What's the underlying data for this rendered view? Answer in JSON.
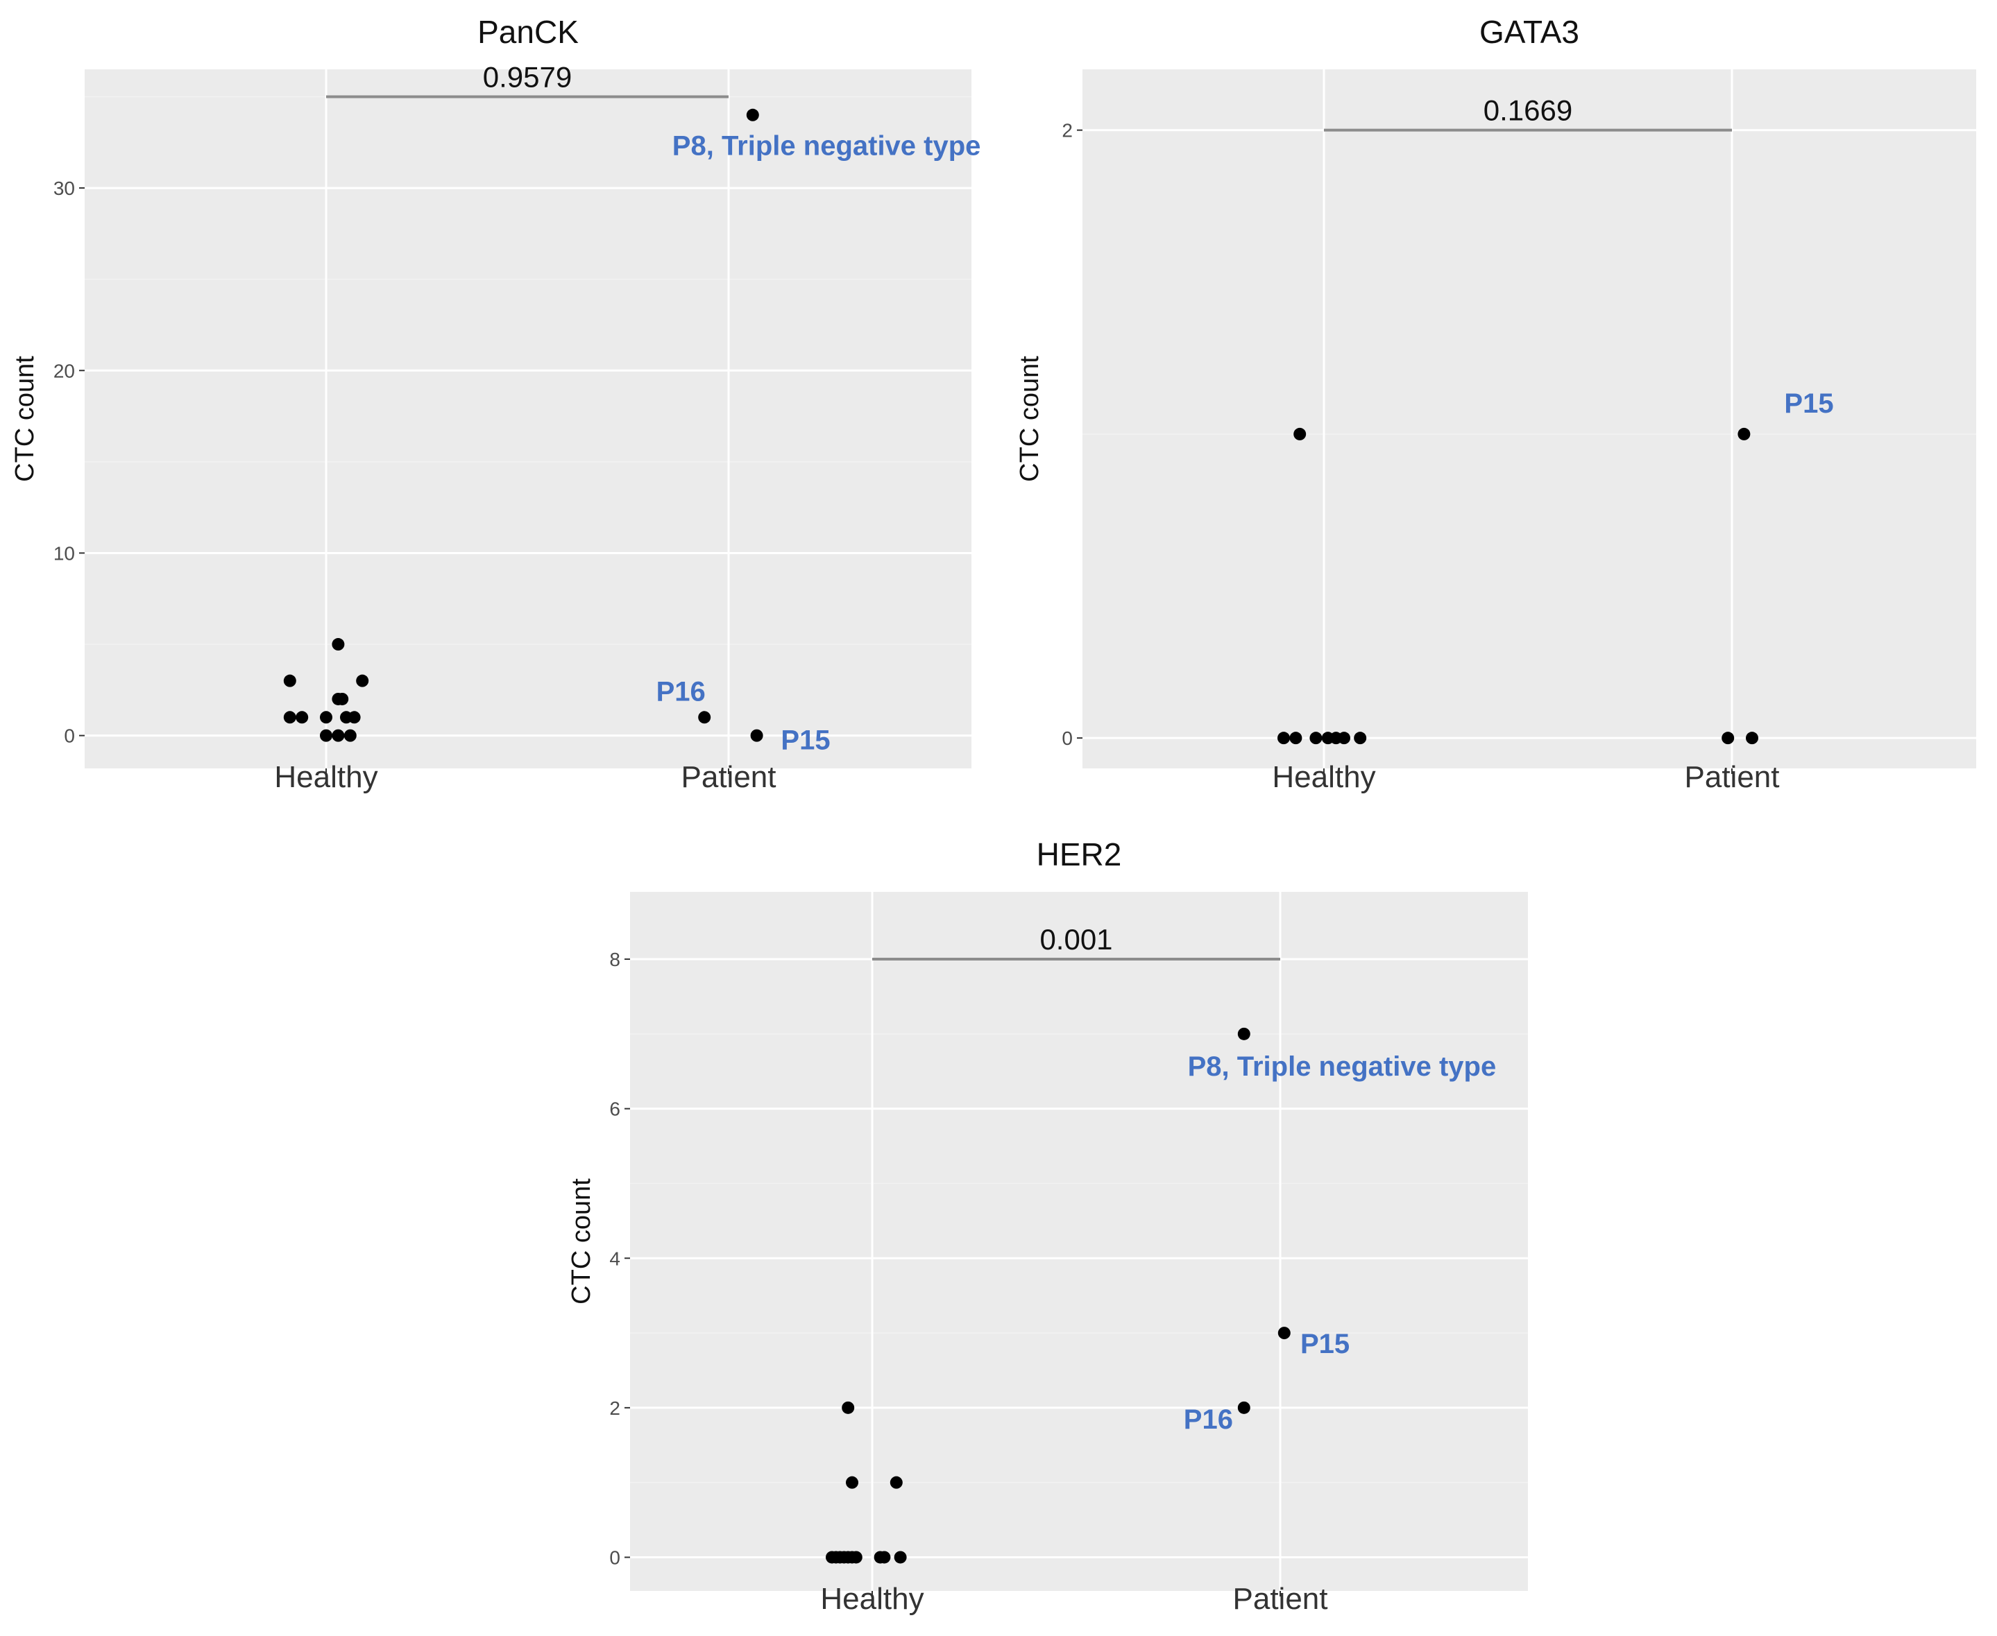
{
  "colors": {
    "panel_bg": "#ebebeb",
    "grid_major": "#ffffff",
    "grid_minor": "#f2f2f2",
    "point": "#000000",
    "annotation": "#4472c4",
    "bracket": "#8c8c8c"
  },
  "chart_data": [
    {
      "type": "scatter",
      "title": "PanCK",
      "xlabel": "",
      "ylabel": "CTC count",
      "categories": [
        "Healthy",
        "Patient"
      ],
      "ylim": [
        -1.8,
        36.5
      ],
      "yticks": [
        0,
        10,
        20,
        30
      ],
      "ytick_labels": [
        "0",
        "10",
        "20",
        "30"
      ],
      "grid": true,
      "p_value": "0.9579",
      "bracket_y": 35,
      "points": [
        {
          "category": "Healthy",
          "jitter": -0.09,
          "y": 3
        },
        {
          "category": "Healthy",
          "jitter": -0.09,
          "y": 1
        },
        {
          "category": "Healthy",
          "jitter": -0.06,
          "y": 1
        },
        {
          "category": "Healthy",
          "jitter": 0.03,
          "y": 5
        },
        {
          "category": "Healthy",
          "jitter": 0.0,
          "y": 1
        },
        {
          "category": "Healthy",
          "jitter": 0.0,
          "y": 0
        },
        {
          "category": "Healthy",
          "jitter": 0.03,
          "y": 2
        },
        {
          "category": "Healthy",
          "jitter": 0.04,
          "y": 2
        },
        {
          "category": "Healthy",
          "jitter": 0.03,
          "y": 0
        },
        {
          "category": "Healthy",
          "jitter": 0.05,
          "y": 1
        },
        {
          "category": "Healthy",
          "jitter": 0.07,
          "y": 1
        },
        {
          "category": "Healthy",
          "jitter": 0.06,
          "y": 0
        },
        {
          "category": "Healthy",
          "jitter": 0.09,
          "y": 3
        },
        {
          "category": "Patient",
          "jitter": 0.06,
          "y": 34
        },
        {
          "category": "Patient",
          "jitter": -0.06,
          "y": 1
        },
        {
          "category": "Patient",
          "jitter": 0.07,
          "y": 0
        }
      ],
      "annotations": [
        {
          "text": "P8, Triple negative type",
          "category": "Patient",
          "jitter": -0.14,
          "y": 31.8
        },
        {
          "text": "P16",
          "category": "Patient",
          "jitter": -0.18,
          "y": 1.9
        },
        {
          "text": "P15",
          "category": "Patient",
          "jitter": 0.13,
          "y": -0.75
        }
      ]
    },
    {
      "type": "scatter",
      "title": "GATA3",
      "xlabel": "",
      "ylabel": "CTC count",
      "categories": [
        "Healthy",
        "Patient"
      ],
      "ylim": [
        -0.1,
        2.2
      ],
      "yticks": [
        0,
        2
      ],
      "ytick_labels": [
        "0",
        "2"
      ],
      "grid": true,
      "p_value": "0.1669",
      "bracket_y": 2,
      "points": [
        {
          "category": "Healthy",
          "jitter": -0.1,
          "y": 0
        },
        {
          "category": "Healthy",
          "jitter": -0.07,
          "y": 0
        },
        {
          "category": "Healthy",
          "jitter": -0.06,
          "y": 1
        },
        {
          "category": "Healthy",
          "jitter": -0.02,
          "y": 0
        },
        {
          "category": "Healthy",
          "jitter": 0.01,
          "y": 0
        },
        {
          "category": "Healthy",
          "jitter": 0.03,
          "y": 0
        },
        {
          "category": "Healthy",
          "jitter": 0.05,
          "y": 0
        },
        {
          "category": "Healthy",
          "jitter": 0.09,
          "y": 0
        },
        {
          "category": "Patient",
          "jitter": 0.03,
          "y": 1
        },
        {
          "category": "Patient",
          "jitter": -0.01,
          "y": 0
        },
        {
          "category": "Patient",
          "jitter": 0.05,
          "y": 0
        }
      ],
      "annotations": [
        {
          "text": "P15",
          "category": "Patient",
          "jitter": 0.13,
          "y": 1.07
        }
      ]
    },
    {
      "type": "scatter",
      "title": "HER2",
      "xlabel": "",
      "ylabel": "CTC count",
      "categories": [
        "Healthy",
        "Patient"
      ],
      "ylim": [
        -0.45,
        8.9
      ],
      "yticks": [
        0,
        2,
        4,
        6,
        8
      ],
      "ytick_labels": [
        "0",
        "2",
        "4",
        "6",
        "8"
      ],
      "grid": true,
      "p_value": "0.001",
      "bracket_y": 8,
      "points": [
        {
          "category": "Healthy",
          "jitter": -0.06,
          "y": 2
        },
        {
          "category": "Healthy",
          "jitter": -0.05,
          "y": 1
        },
        {
          "category": "Healthy",
          "jitter": 0.06,
          "y": 1
        },
        {
          "category": "Healthy",
          "jitter": -0.1,
          "y": 0
        },
        {
          "category": "Healthy",
          "jitter": -0.09,
          "y": 0
        },
        {
          "category": "Healthy",
          "jitter": -0.08,
          "y": 0
        },
        {
          "category": "Healthy",
          "jitter": -0.07,
          "y": 0
        },
        {
          "category": "Healthy",
          "jitter": -0.06,
          "y": 0
        },
        {
          "category": "Healthy",
          "jitter": -0.05,
          "y": 0
        },
        {
          "category": "Healthy",
          "jitter": -0.04,
          "y": 0
        },
        {
          "category": "Healthy",
          "jitter": 0.02,
          "y": 0
        },
        {
          "category": "Healthy",
          "jitter": 0.03,
          "y": 0
        },
        {
          "category": "Healthy",
          "jitter": 0.07,
          "y": 0
        },
        {
          "category": "Patient",
          "jitter": -0.09,
          "y": 7
        },
        {
          "category": "Patient",
          "jitter": 0.01,
          "y": 3
        },
        {
          "category": "Patient",
          "jitter": -0.09,
          "y": 2
        }
      ],
      "annotations": [
        {
          "text": "P8, Triple negative type",
          "category": "Patient",
          "jitter": -0.23,
          "y": 6.44
        },
        {
          "text": "P15",
          "category": "Patient",
          "jitter": 0.05,
          "y": 2.73
        },
        {
          "text": "P16",
          "category": "Patient",
          "jitter": -0.24,
          "y": 1.72
        }
      ]
    }
  ]
}
